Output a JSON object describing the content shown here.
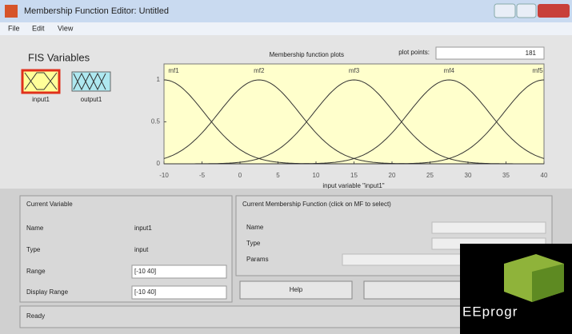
{
  "window": {
    "title": "Membership Function Editor: Untitled"
  },
  "menu": [
    "File",
    "Edit",
    "View"
  ],
  "fis_variables": {
    "title": "FIS Variables",
    "inputs": [
      "input1"
    ],
    "outputs": [
      "output1"
    ]
  },
  "plot": {
    "title": "Membership function plots",
    "plot_points_label": "plot points:",
    "plot_points": 181,
    "xlabel": "input variable \"input1\"",
    "xlim": [
      -10,
      40
    ],
    "ylim": [
      0,
      1
    ],
    "xticks": [
      -10,
      -5,
      0,
      5,
      10,
      15,
      20,
      25,
      30,
      35,
      40
    ],
    "yticks": [
      0,
      0.5,
      1
    ],
    "mfs": [
      {
        "label": "mf1",
        "center": -10,
        "sigma": 5.31
      },
      {
        "label": "mf2",
        "center": 2.5,
        "sigma": 5.31
      },
      {
        "label": "mf3",
        "center": 15,
        "sigma": 5.31
      },
      {
        "label": "mf4",
        "center": 27.5,
        "sigma": 5.31
      },
      {
        "label": "mf5",
        "center": 40,
        "sigma": 5.31
      }
    ]
  },
  "current_variable": {
    "title": "Current Variable",
    "fields": [
      {
        "label": "Name",
        "value": "input1"
      },
      {
        "label": "Type",
        "value": "input"
      },
      {
        "label": "Range",
        "value": "[-10 40]"
      },
      {
        "label": "Display Range",
        "value": "[-10 40]"
      }
    ]
  },
  "current_mf": {
    "title": "Current Membership Function (click on MF to select)",
    "fields": [
      "Name",
      "Type",
      "Params"
    ]
  },
  "buttons": [
    "Help"
  ],
  "status": "Ready",
  "watermark": "EEprogr"
}
